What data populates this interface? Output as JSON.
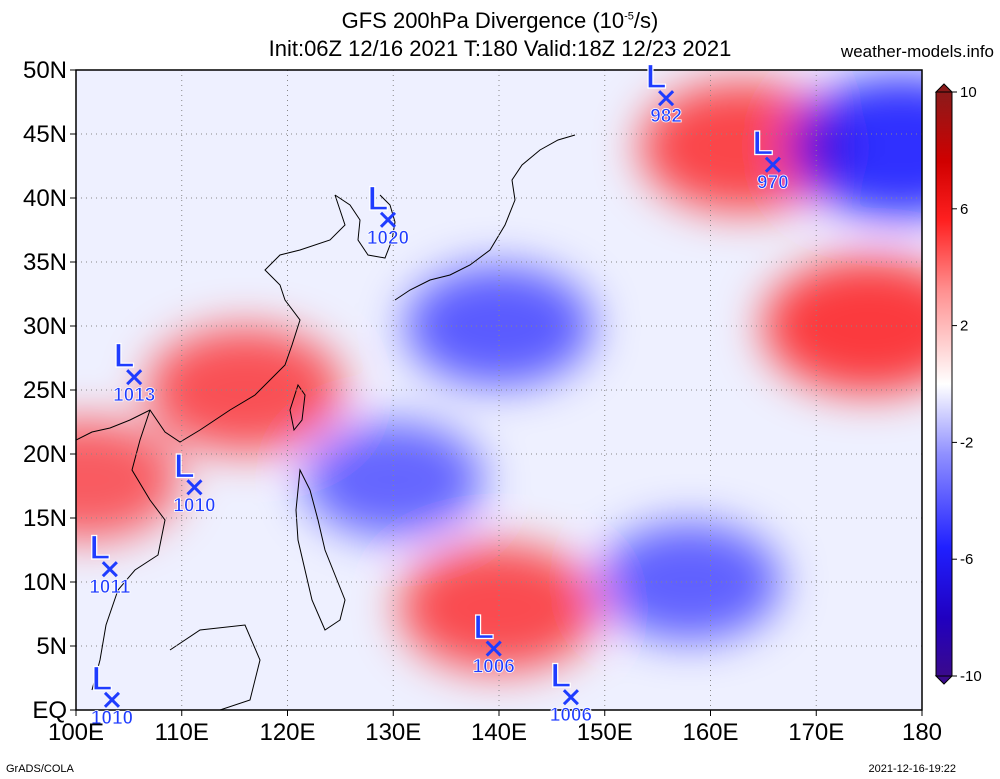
{
  "title": {
    "line1_prefix": "GFS 200hPa Divergence (10",
    "line1_exp": "-5",
    "line1_suffix": "/s)",
    "line2": "Init:06Z 12/16 2021 T:180 Valid:18Z 12/23 2021"
  },
  "site": "weather-models.info",
  "credit_left": "GrADS/COLA",
  "credit_right": "2021-12-16-19:22",
  "map": {
    "lon_labels": [
      "100E",
      "110E",
      "120E",
      "130E",
      "140E",
      "150E",
      "160E",
      "170E",
      "180"
    ],
    "lat_labels": [
      "EQ",
      "5N",
      "10N",
      "15N",
      "20N",
      "25N",
      "30N",
      "35N",
      "40N",
      "45N",
      "50N"
    ],
    "lon_range": [
      100,
      180
    ],
    "lat_range": [
      0,
      50
    ]
  },
  "colorbar": {
    "labels": [
      "10",
      "6",
      "2",
      "-2",
      "-6",
      "-10"
    ],
    "values": [
      10,
      6,
      2,
      -2,
      -6,
      -10
    ],
    "colors": {
      "max": "#8b1a1a",
      "pos": "#ff0000",
      "neutral": "#ffffff",
      "neg": "#0000ff",
      "min": "#3a0a8c"
    }
  },
  "pressure_lows": [
    {
      "label": "L",
      "value": "982",
      "lon": 155.8,
      "lat": 47.8
    },
    {
      "label": "L",
      "value": "970",
      "lon": 165.9,
      "lat": 42.6
    },
    {
      "label": "L",
      "value": "1020",
      "lon": 129.5,
      "lat": 38.3
    },
    {
      "label": "L",
      "value": "1013",
      "lon": 105.5,
      "lat": 26.0
    },
    {
      "label": "L",
      "value": "1010",
      "lon": 111.2,
      "lat": 17.4
    },
    {
      "label": "L",
      "value": "1011",
      "lon": 103.2,
      "lat": 11.0
    },
    {
      "label": "L",
      "value": "1006",
      "lon": 139.5,
      "lat": 4.8
    },
    {
      "label": "L",
      "value": "1006",
      "lon": 146.8,
      "lat": 1.0
    },
    {
      "label": "L",
      "value": "1010",
      "lon": 103.4,
      "lat": 0.8
    }
  ],
  "field_regions": [
    {
      "sign": "pos",
      "lon": 175,
      "lat": 30,
      "intensity": 0.9
    },
    {
      "sign": "pos",
      "lon": 163,
      "lat": 44,
      "intensity": 0.8
    },
    {
      "sign": "neg",
      "lon": 178,
      "lat": 44,
      "intensity": 1.0
    },
    {
      "sign": "pos",
      "lon": 116,
      "lat": 25,
      "intensity": 0.7
    },
    {
      "sign": "neg",
      "lon": 140,
      "lat": 30,
      "intensity": 0.6
    },
    {
      "sign": "pos",
      "lon": 140,
      "lat": 8,
      "intensity": 0.75
    },
    {
      "sign": "neg",
      "lon": 130,
      "lat": 18,
      "intensity": 0.5
    },
    {
      "sign": "neg",
      "lon": 158,
      "lat": 10,
      "intensity": 0.55
    },
    {
      "sign": "pos",
      "lon": 101,
      "lat": 18,
      "intensity": 0.6
    }
  ]
}
